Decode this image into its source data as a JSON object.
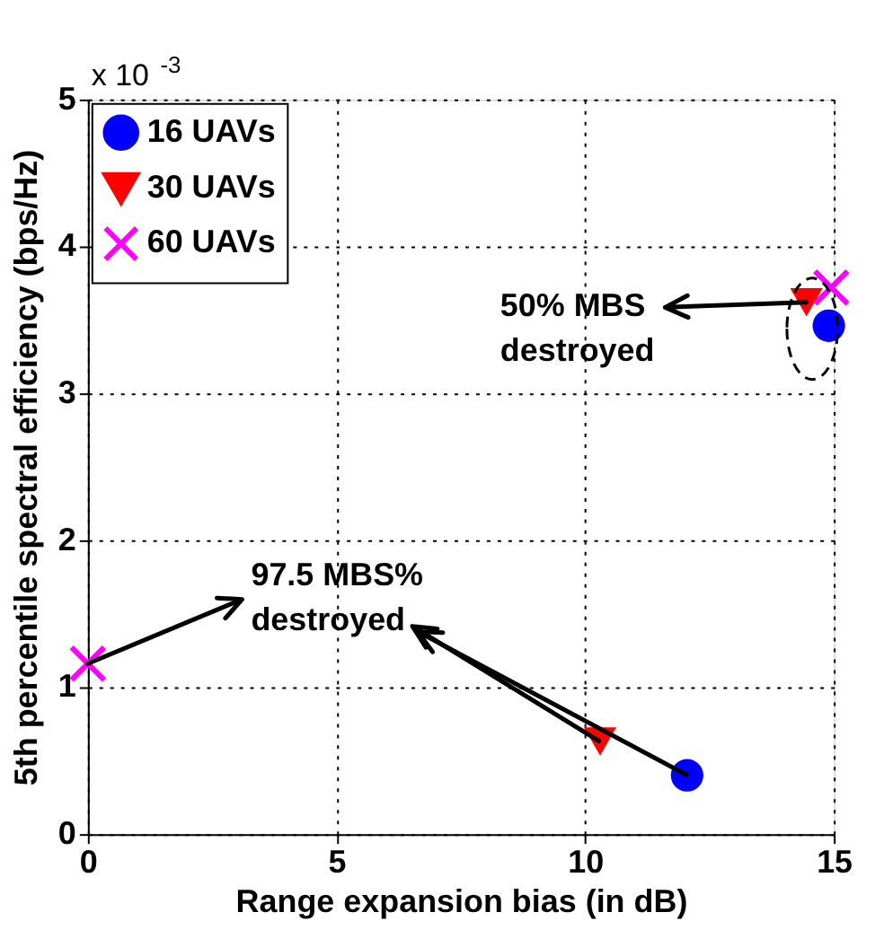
{
  "chart_data": {
    "type": "scatter",
    "xlabel": "Range expansion bias (in dB)",
    "ylabel": "5th percentile spectral efficiency (bps/Hz)",
    "xlim": [
      0,
      15
    ],
    "xticks": [
      0,
      5,
      10,
      15
    ],
    "ylim": [
      0,
      5
    ],
    "yticks": [
      0,
      1,
      2,
      3,
      4,
      5
    ],
    "grid": true,
    "legend": "top left",
    "series": [
      {
        "name": "16 UAVs",
        "color": "#0000ff",
        "marker": "circle",
        "x": [
          12.05,
          14.9
        ],
        "values": [
          0.4,
          3.46
        ]
      },
      {
        "name": "30 UAVs",
        "color": "#ff0000",
        "marker": "triangle",
        "x": [
          10.3,
          14.45
        ],
        "values": [
          0.63,
          3.62
        ]
      },
      {
        "name": "60 UAVs",
        "color": "#ff00ff",
        "marker": "cross",
        "x": [
          0,
          14.95
        ],
        "values": [
          1.16,
          3.72
        ]
      }
    ],
    "annotations": [
      "x 10$^{-3}$",
      {
        "text": "50% MBS\ndestroyed",
        "x": 14.45,
        "y": 3.62
      },
      {
        "text": "97.5 MBS%\ndestroyed",
        "x": 0,
        "y": 1.16
      }
    ]
  }
}
